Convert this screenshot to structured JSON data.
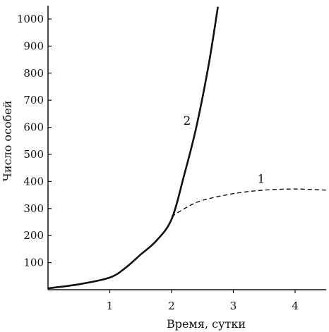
{
  "chart_data": {
    "type": "line",
    "xlabel": "Время,  сутки",
    "ylabel": "Число особей",
    "xlim": [
      0,
      4.5
    ],
    "ylim": [
      0,
      1050
    ],
    "x_ticks": [
      1,
      2,
      3,
      4
    ],
    "y_ticks": [
      100,
      200,
      300,
      400,
      500,
      600,
      700,
      800,
      900,
      1000
    ],
    "grid": false,
    "series": [
      {
        "name": "2",
        "style": "solid",
        "x": [
          0,
          0.5,
          1,
          1.25,
          1.5,
          1.75,
          2,
          2.2,
          2.4,
          2.6,
          2.75
        ],
        "y": [
          5,
          20,
          45,
          80,
          130,
          180,
          260,
          420,
          600,
          830,
          1045
        ]
      },
      {
        "name": "1",
        "style": "dashed",
        "x": [
          2,
          2.25,
          2.5,
          3,
          3.5,
          4,
          4.5
        ],
        "y": [
          270,
          305,
          330,
          355,
          368,
          372,
          368
        ]
      }
    ]
  }
}
